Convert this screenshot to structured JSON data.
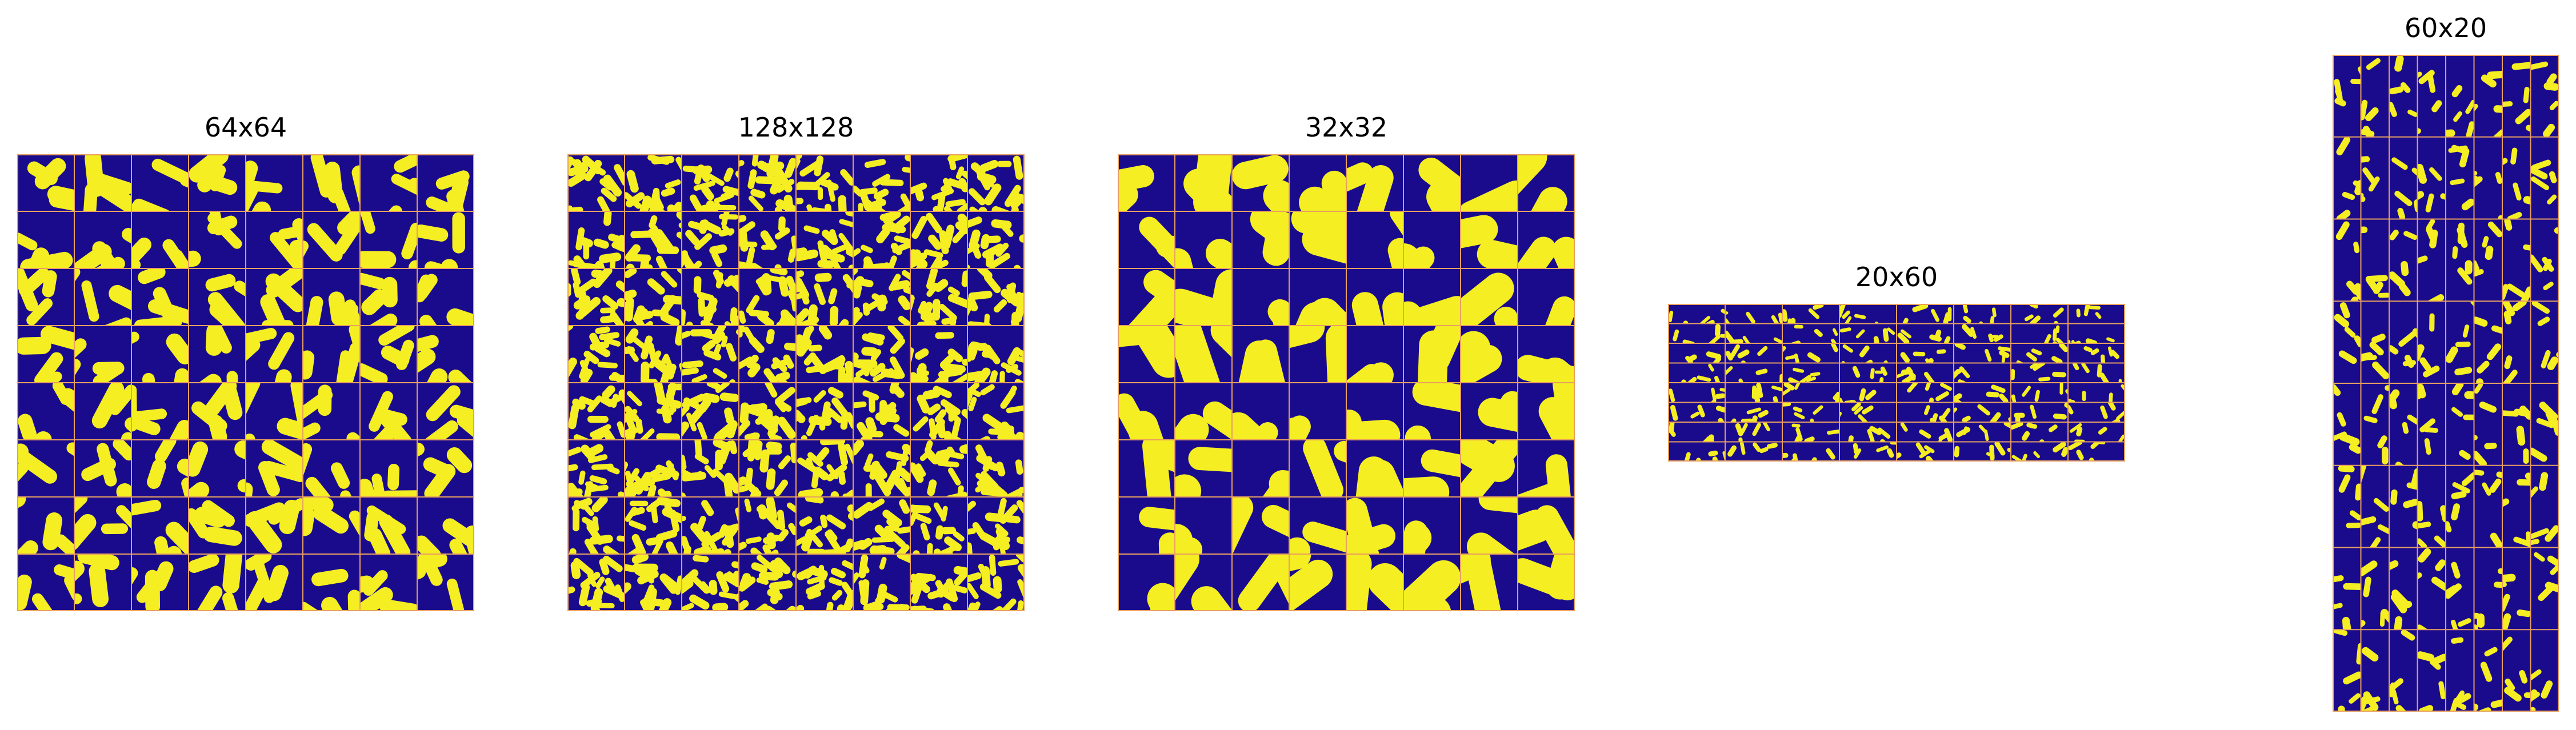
{
  "figure": {
    "panels": [
      {
        "title": "64x64",
        "grid_rows": 8,
        "grid_cols": 8,
        "blob_scale": 1.0
      },
      {
        "title": "128x128",
        "grid_rows": 8,
        "grid_cols": 8,
        "blob_scale": 0.5
      },
      {
        "title": "32x32",
        "grid_rows": 8,
        "grid_cols": 8,
        "blob_scale": 2.0
      },
      {
        "title": "20x60",
        "grid_rows": 8,
        "grid_cols": 8,
        "blob_scale": 0.9
      },
      {
        "title": "60x20",
        "grid_rows": 8,
        "grid_cols": 8,
        "blob_scale": 0.9
      }
    ],
    "colors": {
      "background": "#1a0b8c",
      "foreground": "#f4ee22",
      "grid_line": "#e8a060"
    }
  }
}
